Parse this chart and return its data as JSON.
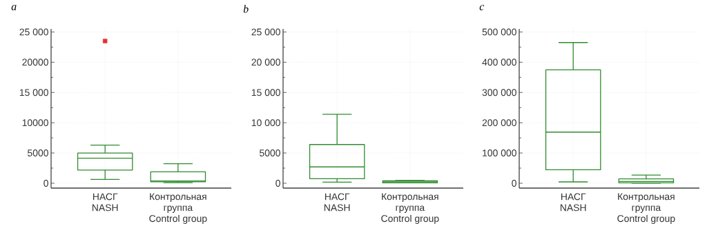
{
  "chart_data": [
    {
      "type": "box",
      "title": "a",
      "categories": [
        "НАСГ\nNASH",
        "Контрольная\nгруппа\nControl group"
      ],
      "ylim": [
        -800,
        25500
      ],
      "yticks": [
        0,
        5000,
        {
          "value": 10000,
          "label": "10000"
        },
        {
          "value": 15000,
          "label": "15 000"
        },
        {
          "value": 20000,
          "label": "20000"
        },
        {
          "value": 25000,
          "label": "25 000"
        }
      ],
      "grid": true,
      "series": [
        {
          "color": "#2e8b2e",
          "boxes": [
            {
              "low": 640,
              "q1": 2180,
              "median": 4130,
              "q3": 5000,
              "high": 6300
            },
            {
              "low": 100,
              "q1": 230,
              "median": 380,
              "q3": 1880,
              "high": 3230
            }
          ]
        },
        {
          "type": "scatter",
          "color": "#e83030",
          "marker": "square",
          "x": [
            "НАСГ\nNASH"
          ],
          "values": [
            23500
          ]
        }
      ]
    },
    {
      "type": "box",
      "title": "b",
      "categories": [
        "НАСГ\nNASH",
        "Контрольная\nгруппа\nControl group"
      ],
      "ylim": [
        -800,
        25500
      ],
      "yticks": [
        0,
        5000,
        {
          "value": 10000,
          "label": "10 000"
        },
        {
          "value": 15000,
          "label": "15 000"
        },
        {
          "value": 20000,
          "label": "20 000"
        },
        {
          "value": 25000,
          "label": "25 000"
        }
      ],
      "grid": true,
      "series": [
        {
          "color": "#2e8b2e",
          "boxes": [
            {
              "low": 190,
              "q1": 750,
              "median": 2700,
              "q3": 6400,
              "high": 11400
            },
            {
              "low": 80,
              "q1": 80,
              "median": 250,
              "q3": 400,
              "high": 450
            }
          ]
        }
      ]
    },
    {
      "type": "box",
      "title": "c",
      "categories": [
        "НАСГ\nNASH",
        "Контрольная\nгруппа\nControl group"
      ],
      "ylim": [
        -16000,
        510000
      ],
      "yticks": [
        0,
        {
          "value": 100000,
          "label": "100 000"
        },
        {
          "value": 200000,
          "label": "200 000"
        },
        {
          "value": 300000,
          "label": "300 000"
        },
        {
          "value": 400000,
          "label": "400 000"
        },
        {
          "value": 500000,
          "label": "500 000"
        }
      ],
      "grid": true,
      "series": [
        {
          "color": "#2e8b2e",
          "boxes": [
            {
              "low": 4500,
              "q1": 44500,
              "median": 169000,
              "q3": 375000,
              "high": 465000
            },
            {
              "low": 0,
              "q1": 1500,
              "median": 6000,
              "q3": 14300,
              "high": 27000
            }
          ]
        }
      ]
    }
  ]
}
